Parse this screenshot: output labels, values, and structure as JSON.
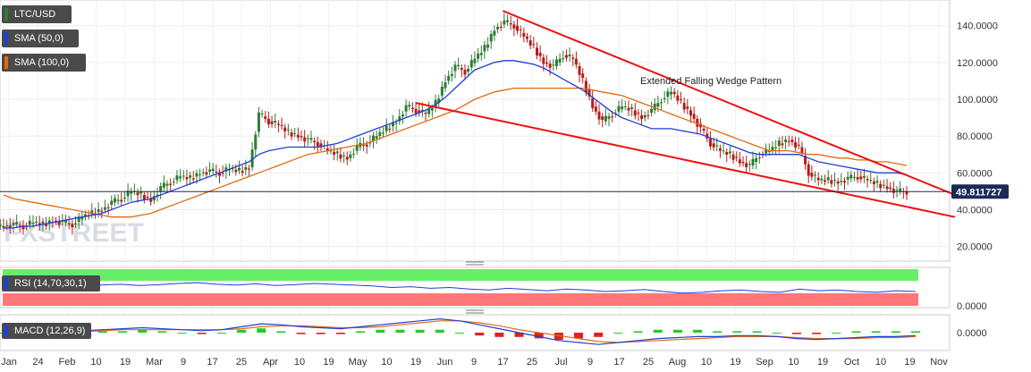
{
  "legend": {
    "symbol": "LTC/USD",
    "sma50": "SMA (50,0)",
    "sma100": "SMA (100,0)"
  },
  "panels": {
    "rsi_label": "RSI (14,70,30,1)",
    "rsi_tick": "0.0000",
    "macd_label": "MACD (12,26,9)",
    "macd_tick": "0.0000"
  },
  "annotation": "Extended Falling Wedge Pattern",
  "watermark": "FXSTREET",
  "colors": {
    "candle_up": "#2e7d32",
    "candle_down": "#b71c1c",
    "sma50": "#1f3fd6",
    "sma100": "#e06a12",
    "wedge": "#ee1111",
    "price_line": "#1a2a55",
    "rsi_overbought": "#66ee66",
    "rsi_oversold": "#ff7777",
    "label_bg": "#4a4a4a"
  },
  "chart_data": [
    {
      "type": "candlestick",
      "title": "LTC/USD",
      "x_tick_labels": [
        "Jan",
        "24",
        "Feb",
        "10",
        "19",
        "Mar",
        "9",
        "17",
        "25",
        "Apr",
        "10",
        "19",
        "May",
        "10",
        "19",
        "Jun",
        "9",
        "17",
        "25",
        "Jul",
        "9",
        "17",
        "25",
        "Aug",
        "10",
        "19",
        "Sep",
        "10",
        "19",
        "Oct",
        "10",
        "19",
        "Nov"
      ],
      "y_tick_labels": [
        "140.0000",
        "120.0000",
        "100.0000",
        "80.0000",
        "60.0000",
        "40.0000",
        "20.0000"
      ],
      "ylim": [
        13,
        152
      ],
      "current_price_label": "49.811727",
      "current_price": 49.81,
      "close_series": [
        31,
        32,
        31,
        33,
        32,
        34,
        33,
        32,
        36,
        38,
        40,
        44,
        46,
        50,
        48,
        45,
        52,
        55,
        58,
        57,
        60,
        61,
        60,
        62,
        61,
        63,
        92,
        88,
        86,
        82,
        80,
        78,
        76,
        72,
        70,
        68,
        74,
        76,
        80,
        84,
        88,
        96,
        94,
        92,
        98,
        110,
        118,
        115,
        122,
        128,
        138,
        142,
        140,
        134,
        128,
        120,
        118,
        124,
        122,
        110,
        96,
        88,
        92,
        96,
        94,
        90,
        94,
        100,
        104,
        98,
        92,
        84,
        76,
        72,
        70,
        66,
        64,
        70,
        72,
        76,
        78,
        74,
        60,
        56,
        56,
        55,
        57,
        58,
        56,
        54,
        52,
        50,
        49.8
      ],
      "series": [
        {
          "name": "SMA (50,0)",
          "values": [
            30,
            30,
            31,
            31,
            32,
            33,
            34,
            35,
            36,
            37,
            38,
            40,
            42,
            44,
            45,
            46,
            48,
            50,
            52,
            54,
            56,
            58,
            60,
            62,
            64,
            66,
            70,
            72,
            73,
            74,
            74,
            74,
            74,
            75,
            76,
            78,
            80,
            82,
            84,
            86,
            88,
            90,
            92,
            94,
            97,
            101,
            106,
            111,
            116,
            118,
            120,
            121,
            121,
            120,
            119,
            117,
            114,
            111,
            108,
            105,
            101,
            97,
            93,
            90,
            88,
            86,
            84,
            84,
            84,
            83,
            82,
            81,
            79,
            77,
            75,
            73,
            71,
            70,
            70,
            70,
            70,
            70,
            68,
            66,
            65,
            64,
            63,
            62,
            61,
            60,
            60,
            60,
            59
          ]
        },
        {
          "name": "SMA (100,0)",
          "values": [
            48,
            46,
            45,
            44,
            43,
            42,
            41,
            40,
            39,
            38,
            37,
            36,
            36,
            36,
            37,
            38,
            40,
            42,
            44,
            46,
            48,
            50,
            52,
            54,
            56,
            58,
            60,
            62,
            64,
            66,
            68,
            70,
            71,
            72,
            73,
            74,
            75,
            76,
            78,
            80,
            82,
            84,
            86,
            88,
            90,
            92,
            94,
            97,
            100,
            102,
            104,
            105,
            106,
            106,
            106,
            106,
            106,
            106,
            106,
            106,
            105,
            104,
            103,
            102,
            100,
            98,
            96,
            94,
            92,
            90,
            88,
            86,
            84,
            82,
            80,
            78,
            76,
            74,
            72,
            72,
            72,
            71,
            70,
            70,
            69,
            68,
            68,
            67,
            67,
            66,
            66,
            65,
            64
          ]
        }
      ],
      "trendlines": [
        {
          "name": "upper-wedge",
          "from": {
            "x": "Jun 17",
            "y": 148
          },
          "to": {
            "x": "Nov",
            "y": 48
          }
        },
        {
          "name": "lower-wedge",
          "from": {
            "x": "May 19",
            "y": 98
          },
          "to": {
            "x": "Nov",
            "y": 36
          }
        }
      ]
    },
    {
      "type": "line",
      "title": "RSI (14,70,30,1)",
      "y_tick_labels": [
        "0.0000"
      ],
      "series": [
        {
          "values": [
            55,
            52,
            58,
            54,
            60,
            56,
            58,
            55,
            57,
            60,
            62,
            58,
            56,
            59,
            55,
            57,
            60,
            58,
            56,
            54,
            50,
            52,
            48,
            50,
            46,
            44,
            48,
            45,
            42,
            46,
            44,
            40,
            42,
            45,
            40,
            36,
            38,
            42,
            44,
            40,
            38,
            46,
            42,
            44,
            40,
            38,
            42,
            40
          ]
        }
      ]
    },
    {
      "type": "line",
      "title": "MACD (12,26,9)",
      "y_tick_labels": [
        "0.0000"
      ],
      "series": [
        {
          "name": "MACD",
          "values": [
            0,
            0,
            1,
            2,
            2,
            3,
            4,
            5,
            4,
            3,
            2,
            3,
            6,
            9,
            8,
            6,
            5,
            4,
            6,
            8,
            10,
            12,
            14,
            12,
            8,
            4,
            0,
            -4,
            -8,
            -10,
            -12,
            -10,
            -8,
            -6,
            -5,
            -4,
            -4,
            -3,
            -3,
            -4,
            -6,
            -7,
            -6,
            -5,
            -4,
            -4,
            -3
          ]
        },
        {
          "name": "Signal",
          "values": [
            0,
            0,
            0,
            1,
            1,
            2,
            3,
            3,
            3,
            3,
            3,
            3,
            4,
            6,
            7,
            7,
            6,
            5,
            5,
            6,
            8,
            10,
            12,
            12,
            10,
            7,
            3,
            0,
            -3,
            -6,
            -9,
            -10,
            -9,
            -8,
            -7,
            -6,
            -5,
            -4,
            -4,
            -4,
            -5,
            -6,
            -6,
            -6,
            -5,
            -5,
            -4
          ]
        }
      ]
    }
  ]
}
